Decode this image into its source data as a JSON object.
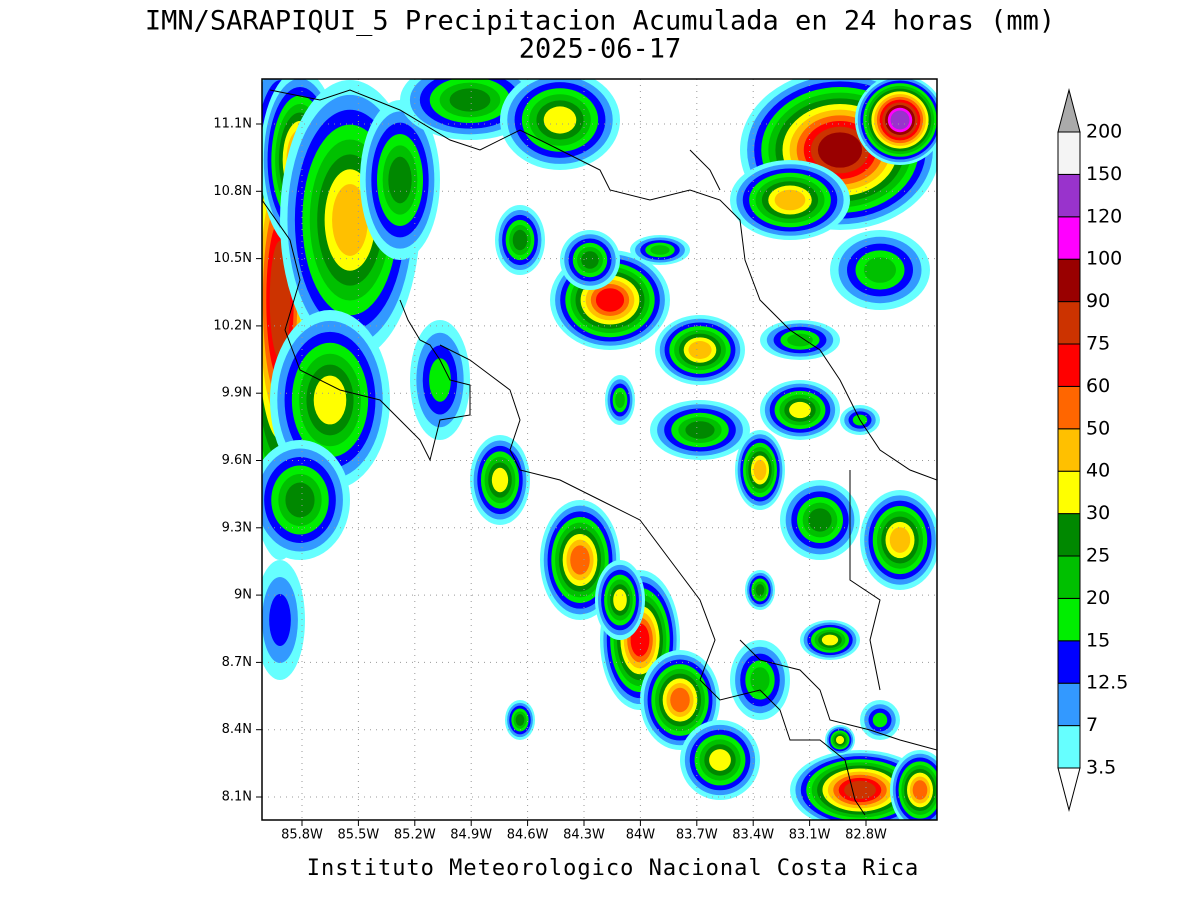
{
  "title": "IMN/SARAPIQUI_5 Precipitacion Acumulada en 24 horas (mm)",
  "subtitle": "2025-06-17",
  "map": {
    "lat_labels": [
      "11.1N",
      "10.8N",
      "10.5N",
      "10.2N",
      "9.9N",
      "9.6N",
      "9.3N",
      "9N",
      "8.7N",
      "8.4N",
      "8.1N"
    ],
    "lon_labels": [
      "85.8W",
      "85.5W",
      "85.2W",
      "84.9W",
      "84.6W",
      "84.3W",
      "84W",
      "83.7W",
      "83.4W",
      "83.1W",
      "82.8W"
    ]
  },
  "colorbar": {
    "levels": [
      3.5,
      7,
      12.5,
      15,
      20,
      25,
      30,
      40,
      50,
      60,
      75,
      90,
      100,
      120,
      150,
      200
    ],
    "colors": [
      "#66ffff",
      "#3399ff",
      "#0000ff",
      "#00ee00",
      "#00c000",
      "#008800",
      "#ffff00",
      "#ffc000",
      "#ff6600",
      "#ff0000",
      "#cc3300",
      "#990000",
      "#ff00ff",
      "#9933cc",
      "#f4f4f4"
    ],
    "under_color": "#ffffff",
    "over_color": "#aaaaaa"
  },
  "footer": "Instituto Meteorologico Nacional Costa Rica"
}
